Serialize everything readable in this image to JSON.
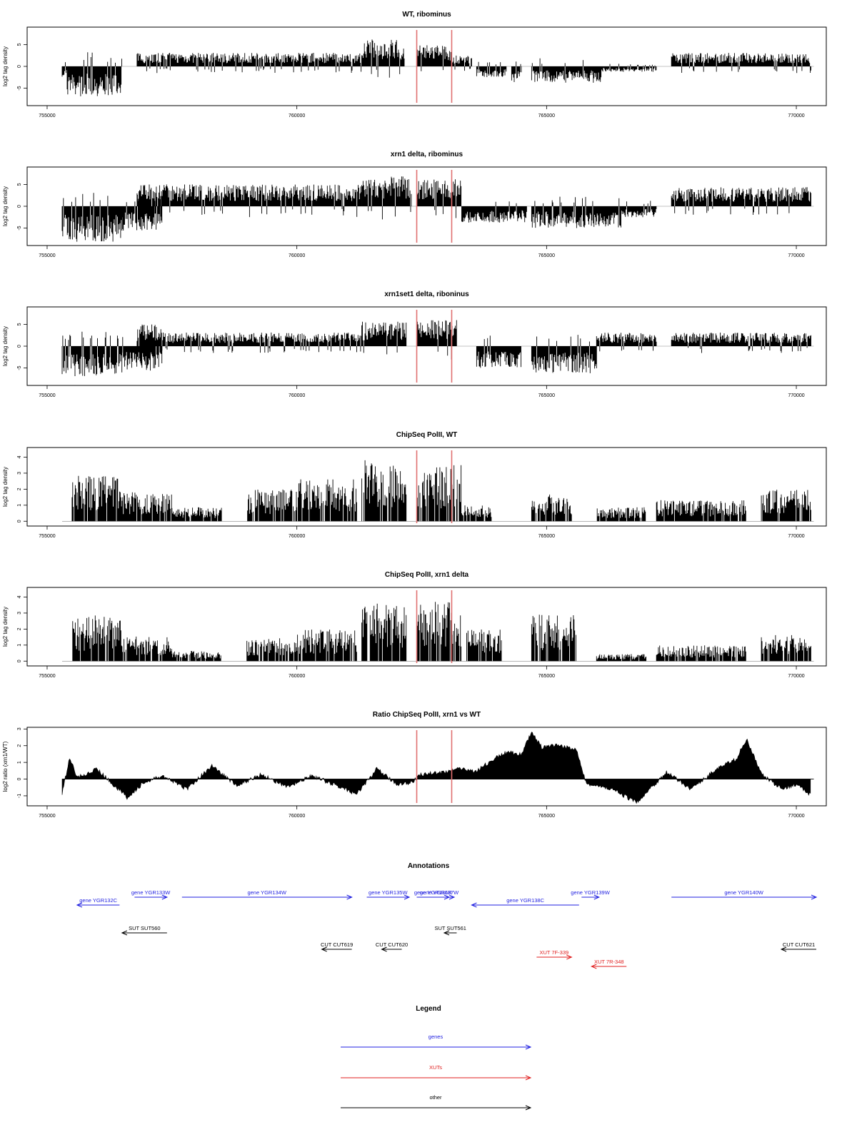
{
  "figure": {
    "colors": {
      "signal": "#000000",
      "frame": "#000000",
      "marker": "#e07070",
      "gene": "#1f1fe0",
      "xut": "#e01f1f",
      "other": "#000000"
    }
  },
  "chart_data": [
    {
      "type": "bar",
      "title": "WT, ribominus",
      "ylabel": "log2 tag density",
      "xlim": [
        754600,
        770600
      ],
      "ylim": [
        -9,
        9
      ],
      "yticks": [
        -5,
        0,
        5
      ],
      "ytick_labels": [
        "-5",
        "0",
        "5"
      ],
      "xticks": [
        755000,
        760000,
        765000,
        770000
      ],
      "xtick_labels": [
        "755000",
        "760000",
        "765000",
        "770000"
      ],
      "markers": [
        762400,
        763100
      ],
      "segments": [
        {
          "start": 755300,
          "end": 755400,
          "value": -2
        },
        {
          "start": 755400,
          "end": 756500,
          "value": -5.5
        },
        {
          "start": 756800,
          "end": 757400,
          "value": 2.5
        },
        {
          "start": 757400,
          "end": 761300,
          "value": 2.5
        },
        {
          "start": 761300,
          "end": 762150,
          "value": 5
        },
        {
          "start": 762400,
          "end": 763100,
          "value": 4
        },
        {
          "start": 763100,
          "end": 763500,
          "value": 2
        },
        {
          "start": 763600,
          "end": 764200,
          "value": -2
        },
        {
          "start": 764300,
          "end": 764500,
          "value": -3
        },
        {
          "start": 764700,
          "end": 766100,
          "value": -3
        },
        {
          "start": 766100,
          "end": 767200,
          "value": -1
        },
        {
          "start": 767500,
          "end": 770300,
          "value": 2.5
        }
      ]
    },
    {
      "type": "bar",
      "title": "xrn1 delta, ribominus",
      "ylabel": "log2 tag density",
      "xlim": [
        754600,
        770600
      ],
      "ylim": [
        -9,
        9
      ],
      "yticks": [
        -5,
        0,
        5
      ],
      "ytick_labels": [
        "-5",
        "0",
        "5"
      ],
      "xticks": [
        755000,
        760000,
        765000,
        770000
      ],
      "xtick_labels": [
        "755000",
        "760000",
        "765000",
        "770000"
      ],
      "markers": [
        762400,
        763100
      ],
      "segments": [
        {
          "start": 755300,
          "end": 756500,
          "value": -6.5
        },
        {
          "start": 756500,
          "end": 757300,
          "value": -4.5
        },
        {
          "start": 756800,
          "end": 761300,
          "value": 4
        },
        {
          "start": 761300,
          "end": 762300,
          "value": 5.5
        },
        {
          "start": 762400,
          "end": 763300,
          "value": 5
        },
        {
          "start": 763300,
          "end": 764600,
          "value": -3
        },
        {
          "start": 764700,
          "end": 766500,
          "value": -4
        },
        {
          "start": 766500,
          "end": 767200,
          "value": -2
        },
        {
          "start": 767500,
          "end": 770300,
          "value": 3.5
        }
      ]
    },
    {
      "type": "bar",
      "title": "xrn1set1 delta, riboninus",
      "ylabel": "log2 tag density",
      "xlim": [
        754600,
        770600
      ],
      "ylim": [
        -9,
        9
      ],
      "yticks": [
        -5,
        0,
        5
      ],
      "ytick_labels": [
        "-5",
        "0",
        "5"
      ],
      "xticks": [
        755000,
        760000,
        765000,
        770000
      ],
      "xtick_labels": [
        "755000",
        "760000",
        "765000",
        "770000"
      ],
      "markers": [
        762400,
        763100
      ],
      "segments": [
        {
          "start": 755300,
          "end": 756500,
          "value": -5.5
        },
        {
          "start": 756500,
          "end": 757300,
          "value": -4.5
        },
        {
          "start": 756800,
          "end": 757300,
          "value": 4
        },
        {
          "start": 757300,
          "end": 761300,
          "value": 2.5
        },
        {
          "start": 761300,
          "end": 762200,
          "value": 4.5
        },
        {
          "start": 762400,
          "end": 763200,
          "value": 5
        },
        {
          "start": 763600,
          "end": 764500,
          "value": -4
        },
        {
          "start": 764700,
          "end": 766000,
          "value": -5
        },
        {
          "start": 766000,
          "end": 767200,
          "value": 2.5
        },
        {
          "start": 767500,
          "end": 770300,
          "value": 2.5
        }
      ]
    },
    {
      "type": "bar",
      "title": "ChipSeq PolII, WT",
      "ylabel": "log2 tag density",
      "xlim": [
        754600,
        770600
      ],
      "ylim": [
        -0.3,
        4.6
      ],
      "yticks": [
        0,
        1,
        2,
        3,
        4
      ],
      "ytick_labels": [
        "0",
        "1",
        "2",
        "3",
        "4"
      ],
      "xticks": [
        755000,
        760000,
        765000,
        770000
      ],
      "xtick_labels": [
        "755000",
        "760000",
        "765000",
        "770000"
      ],
      "markers": [
        762400,
        763100
      ],
      "segments": [
        {
          "start": 755500,
          "end": 756500,
          "value": 2.6
        },
        {
          "start": 756500,
          "end": 757500,
          "value": 1.7
        },
        {
          "start": 757500,
          "end": 758500,
          "value": 0.8
        },
        {
          "start": 759000,
          "end": 760000,
          "value": 1.8
        },
        {
          "start": 760000,
          "end": 761200,
          "value": 2.4
        },
        {
          "start": 761300,
          "end": 762200,
          "value": 3.5
        },
        {
          "start": 762400,
          "end": 763300,
          "value": 3.2
        },
        {
          "start": 763300,
          "end": 763900,
          "value": 0.9
        },
        {
          "start": 764700,
          "end": 765500,
          "value": 1.6
        },
        {
          "start": 766000,
          "end": 767000,
          "value": 0.8
        },
        {
          "start": 767200,
          "end": 769000,
          "value": 1.2
        },
        {
          "start": 769300,
          "end": 770300,
          "value": 1.8
        }
      ]
    },
    {
      "type": "bar",
      "title": "ChipSeq PolII, xrn1 delta",
      "ylabel": "log2 tag density",
      "xlim": [
        754600,
        770600
      ],
      "ylim": [
        -0.3,
        4.6
      ],
      "yticks": [
        0,
        1,
        2,
        3,
        4
      ],
      "ytick_labels": [
        "0",
        "1",
        "2",
        "3",
        "4"
      ],
      "xticks": [
        755000,
        760000,
        765000,
        770000
      ],
      "xtick_labels": [
        "755000",
        "760000",
        "765000",
        "770000"
      ],
      "markers": [
        762400,
        763100
      ],
      "segments": [
        {
          "start": 755500,
          "end": 756500,
          "value": 2.6
        },
        {
          "start": 756500,
          "end": 757500,
          "value": 1.4
        },
        {
          "start": 757500,
          "end": 758500,
          "value": 0.6
        },
        {
          "start": 759000,
          "end": 760000,
          "value": 1.3
        },
        {
          "start": 760000,
          "end": 761200,
          "value": 1.8
        },
        {
          "start": 761300,
          "end": 762200,
          "value": 3.3
        },
        {
          "start": 762400,
          "end": 763300,
          "value": 3.4
        },
        {
          "start": 763400,
          "end": 764100,
          "value": 1.8
        },
        {
          "start": 764700,
          "end": 765600,
          "value": 2.7
        },
        {
          "start": 766000,
          "end": 767000,
          "value": 0.4
        },
        {
          "start": 767200,
          "end": 769000,
          "value": 0.9
        },
        {
          "start": 769300,
          "end": 770300,
          "value": 1.5
        }
      ]
    },
    {
      "type": "area",
      "title": "Ratio ChipSeq PolII, xrn1 vs WT",
      "ylabel": "log2 ratio (xrn1/WT)",
      "xlim": [
        754600,
        770600
      ],
      "ylim": [
        -1.6,
        3.1
      ],
      "yticks": [
        -1,
        0,
        1,
        2,
        3
      ],
      "ytick_labels": [
        "-1",
        "0",
        "1",
        "2",
        "3"
      ],
      "xticks": [
        755000,
        760000,
        765000,
        770000
      ],
      "xtick_labels": [
        "755000",
        "760000",
        "765000",
        "770000"
      ],
      "markers": [
        762400,
        763100
      ],
      "x": [
        755300,
        755450,
        755600,
        756000,
        756600,
        756900,
        757300,
        757800,
        758300,
        758800,
        759300,
        759800,
        760300,
        760800,
        761200,
        761600,
        762000,
        762300,
        762500,
        762900,
        763200,
        763600,
        764000,
        764200,
        764500,
        764700,
        764900,
        765200,
        765600,
        765800,
        766300,
        766800,
        767400,
        767900,
        768400,
        768800,
        769000,
        769300,
        769700,
        770000,
        770300
      ],
      "y": [
        -0.9,
        1.3,
        0.1,
        0.6,
        -1.1,
        -0.3,
        0.2,
        -0.6,
        0.8,
        -0.4,
        0.3,
        -0.5,
        0.2,
        -0.4,
        -0.9,
        0.6,
        -0.3,
        -0.2,
        0.3,
        0.4,
        0.6,
        0.5,
        1.3,
        1.6,
        1.5,
        2.8,
        1.9,
        2.0,
        1.8,
        -0.3,
        -0.6,
        -1.4,
        0.4,
        -0.6,
        0.6,
        1.2,
        2.4,
        0.3,
        -0.6,
        -0.3,
        -1.0
      ]
    }
  ],
  "annotations": {
    "title": "Annotations",
    "xlim": [
      754600,
      770600
    ],
    "features": [
      {
        "label": "gene YGR132C",
        "start": 755600,
        "end": 756450,
        "strand": "-",
        "kind": "gene",
        "row": 1
      },
      {
        "label": "gene YGR133W",
        "start": 756750,
        "end": 757400,
        "strand": "+",
        "kind": "gene",
        "row": 0
      },
      {
        "label": "gene YGR134W",
        "start": 757700,
        "end": 761100,
        "strand": "+",
        "kind": "gene",
        "row": 0
      },
      {
        "label": "gene YGR135W",
        "start": 761400,
        "end": 762250,
        "strand": "+",
        "kind": "gene",
        "row": 0
      },
      {
        "label": "gene YGR136R",
        "start": 762400,
        "end": 763050,
        "strand": "+",
        "kind": "gene",
        "row": 0
      },
      {
        "label": "gene YGR137W",
        "start": 762550,
        "end": 763150,
        "strand": "+",
        "kind": "gene",
        "row": 0
      },
      {
        "label": "gene YGR138C",
        "start": 763500,
        "end": 765650,
        "strand": "-",
        "kind": "gene",
        "row": 1
      },
      {
        "label": "gene YGR139W",
        "start": 765700,
        "end": 766050,
        "strand": "+",
        "kind": "gene",
        "row": 0
      },
      {
        "label": "gene YGR140W",
        "start": 767500,
        "end": 770400,
        "strand": "+",
        "kind": "gene",
        "row": 0
      },
      {
        "label": "SUT SUT560",
        "start": 756500,
        "end": 757400,
        "strand": "-",
        "kind": "other",
        "row": 2
      },
      {
        "label": "SUT SUT561",
        "start": 762950,
        "end": 763200,
        "strand": "-",
        "kind": "other",
        "row": 2
      },
      {
        "label": "CUT CUT619",
        "start": 760500,
        "end": 761100,
        "strand": "-",
        "kind": "other",
        "row": 3
      },
      {
        "label": "CUT CUT620",
        "start": 761700,
        "end": 762100,
        "strand": "-",
        "kind": "other",
        "row": 3
      },
      {
        "label": "CUT CUT621",
        "start": 769700,
        "end": 770400,
        "strand": "-",
        "kind": "other",
        "row": 3
      },
      {
        "label": "XUT 7F-339",
        "start": 764800,
        "end": 765500,
        "strand": "+",
        "kind": "xut",
        "row": 4
      },
      {
        "label": "XUT 7R-348",
        "start": 765900,
        "end": 766600,
        "strand": "-",
        "kind": "xut",
        "row": 5
      }
    ]
  },
  "legend": {
    "title": "Legend",
    "entries": [
      {
        "label": "genes",
        "kind": "gene"
      },
      {
        "label": "XUTs",
        "kind": "xut"
      },
      {
        "label": "other",
        "kind": "other"
      }
    ]
  }
}
